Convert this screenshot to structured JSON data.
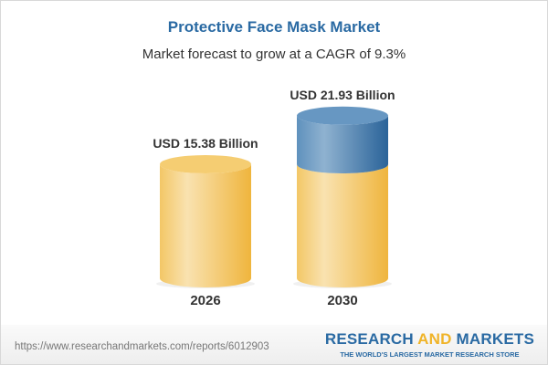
{
  "header": {
    "title": "Protective Face Mask Market",
    "subtitle": "Market forecast to grow at a CAGR of 9.3%"
  },
  "chart_data": {
    "type": "bar",
    "style": "3d-cylinder",
    "categories": [
      "2026",
      "2030"
    ],
    "values": [
      15.38,
      21.93
    ],
    "data_labels": [
      "USD 15.38 Billion",
      "USD 21.93 Billion"
    ],
    "unit": "USD Billion",
    "colors": {
      "base": "#f2c15a",
      "growth": "#3f7bb0"
    },
    "grid": false
  },
  "footer": {
    "url": "https://www.researchandmarkets.com/reports/6012903",
    "logo_part1": "RESEARCH ",
    "logo_part2": "AND",
    "logo_part3": " MARKETS",
    "tagline": "THE WORLD'S LARGEST MARKET RESEARCH STORE"
  }
}
